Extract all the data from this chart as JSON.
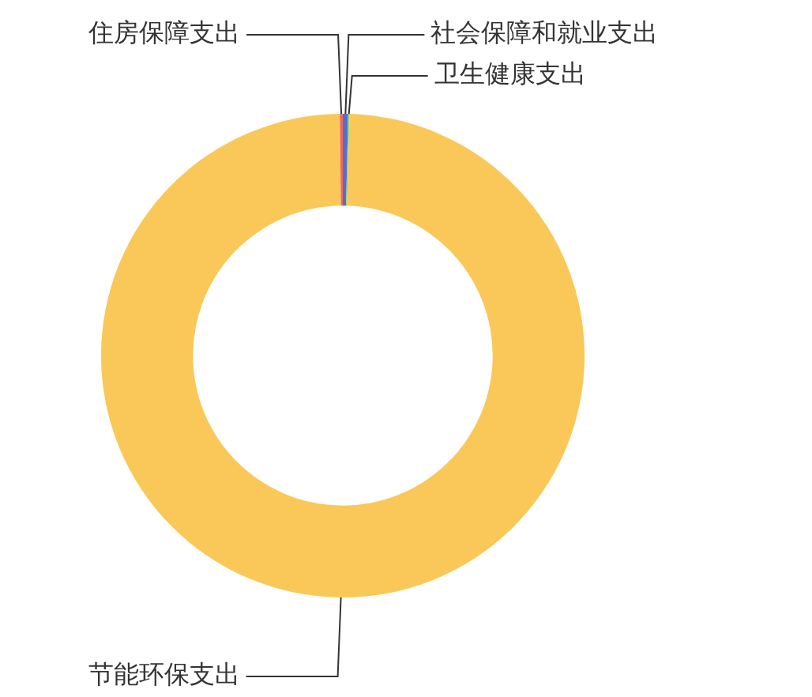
{
  "chart_data": {
    "type": "donut",
    "categories": [
      "社会保障和就业支出",
      "卫生健康支出",
      "节能环保支出",
      "住房保障支出"
    ],
    "values": [
      0.35,
      0.1,
      99.35,
      0.2
    ],
    "colors": [
      "#5470c6",
      "#91cc75",
      "#fac858",
      "#ee6666"
    ]
  }
}
